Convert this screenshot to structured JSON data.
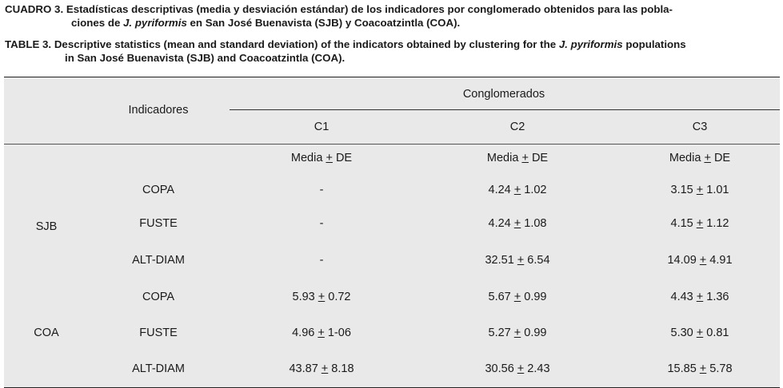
{
  "caption_es": {
    "label": "CUADRO 3.",
    "line1": "Estadísticas descriptivas (media y desviación estándar) de los indicadores por conglomerado obtenidos para las pobla-",
    "line2_pre": "ciones de ",
    "line2_species": "J. pyriformis",
    "line2_post": " en San José Buenavista  (SJB) y Coacoatzintla (COA)."
  },
  "caption_en": {
    "label": "TABLE 3.",
    "line1_pre": "Descriptive statistics (mean and standard deviation) of the indicators obtained by clustering for the ",
    "line1_species": "J. pyriformis",
    "line1_post": " populations",
    "line2": "in San José Buenavista (SJB) and Coacoatzintla (COA)."
  },
  "table": {
    "header": {
      "indicators": "Indicadores",
      "clusters": "Conglomerados",
      "columns": [
        "C1",
        "C2",
        "C3"
      ],
      "stat_pre": "Media ",
      "stat_pm": "+",
      "stat_post": " DE"
    },
    "groups": [
      {
        "name": "SJB",
        "rows": [
          {
            "indicator": "COPA",
            "values": [
              {
                "mean": "-",
                "sd": ""
              },
              {
                "mean": "4.24",
                "sd": "1.02"
              },
              {
                "mean": "3.15",
                "sd": "1.01"
              }
            ]
          },
          {
            "indicator": "FUSTE",
            "values": [
              {
                "mean": "-",
                "sd": ""
              },
              {
                "mean": "4.24",
                "sd": "1.08"
              },
              {
                "mean": "4.15",
                "sd": "1.12"
              }
            ]
          },
          {
            "indicator": "ALT-DIAM",
            "values": [
              {
                "mean": "-",
                "sd": ""
              },
              {
                "mean": "32.51",
                "sd": "6.54"
              },
              {
                "mean": "14.09",
                "sd": "4.91"
              }
            ]
          }
        ]
      },
      {
        "name": "COA",
        "rows": [
          {
            "indicator": "COPA",
            "values": [
              {
                "mean": "5.93",
                "sd": "0.72"
              },
              {
                "mean": "5.67",
                "sd": "0.99"
              },
              {
                "mean": "4.43",
                "sd": "1.36"
              }
            ]
          },
          {
            "indicator": "FUSTE",
            "values": [
              {
                "mean": "4.96",
                "sd": "1-06"
              },
              {
                "mean": "5.27",
                "sd": "0.99"
              },
              {
                "mean": "5.30",
                "sd": "0.81"
              }
            ]
          },
          {
            "indicator": "ALT-DIAM",
            "values": [
              {
                "mean": "43.87",
                "sd": "8.18"
              },
              {
                "mean": "30.56",
                "sd": "2.43"
              },
              {
                "mean": "15.85",
                "sd": "5.78"
              }
            ]
          }
        ]
      }
    ]
  }
}
